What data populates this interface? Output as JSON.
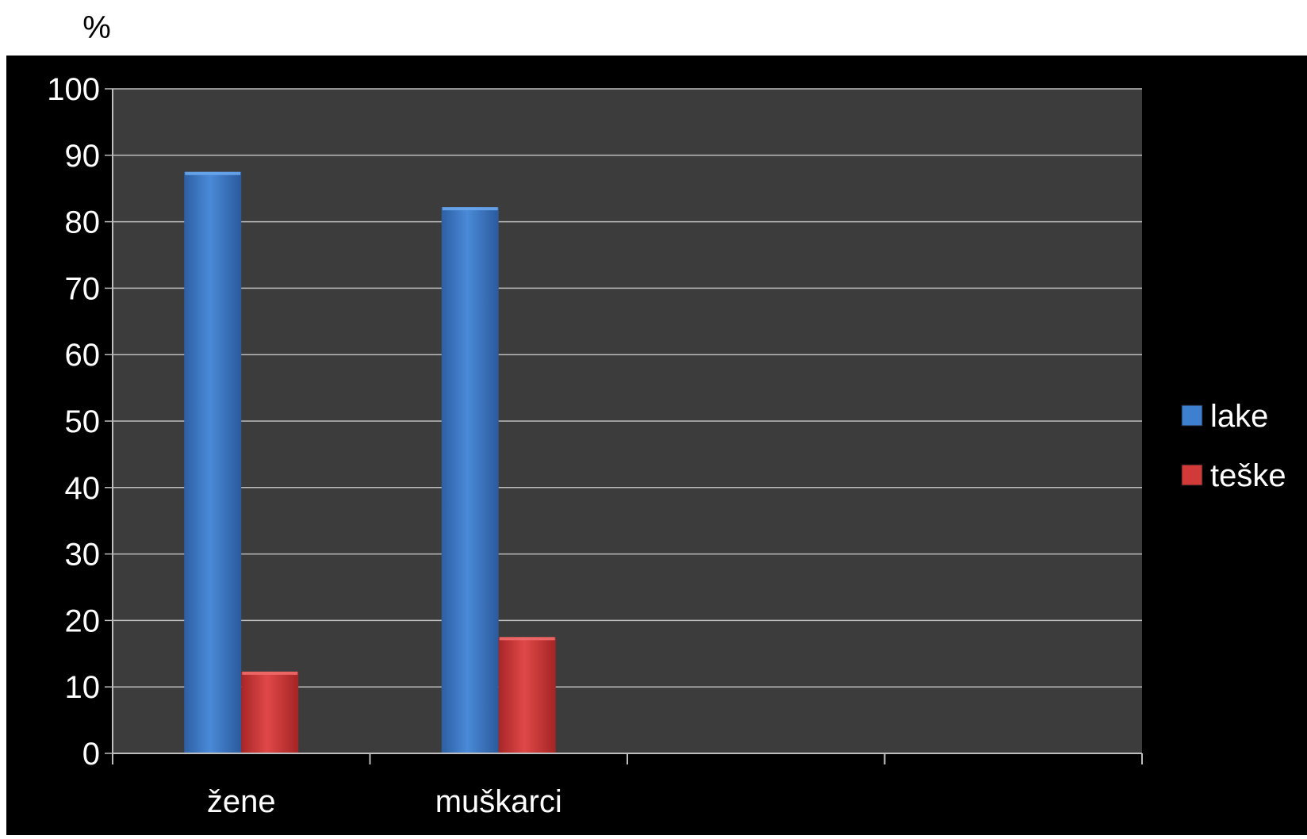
{
  "chart_data": {
    "type": "bar",
    "ylabel": "%",
    "ylim": [
      0,
      100
    ],
    "yticks": [
      0,
      10,
      20,
      30,
      40,
      50,
      60,
      70,
      80,
      90,
      100
    ],
    "categories": [
      "žene",
      "muškarci",
      "",
      ""
    ],
    "series": [
      {
        "name": "lake",
        "values": [
          87.5,
          82.2,
          null,
          null
        ]
      },
      {
        "name": "teške",
        "values": [
          12.3,
          17.5,
          null,
          null
        ]
      }
    ],
    "grid": true,
    "legend_position": "right",
    "colors": {
      "lake": "#3f7fd0",
      "teske": "#d23a3a",
      "frame_background": "#000000",
      "plot_background": "#3c3c3c",
      "gridline": "#bdbdbd",
      "text": "#ffffff",
      "page_background": "#ffffff",
      "page_text": "#000000"
    }
  }
}
